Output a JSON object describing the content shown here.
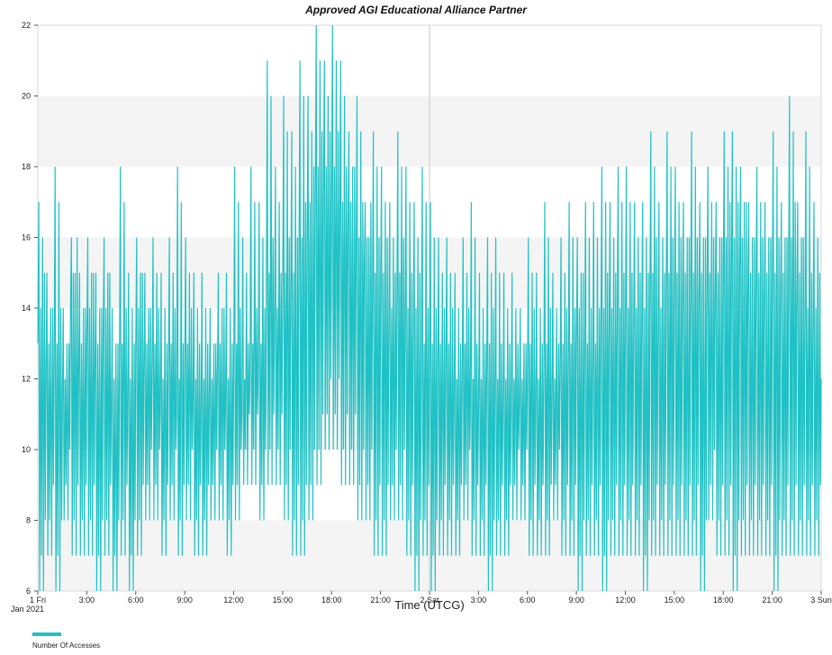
{
  "chart_data": {
    "type": "line",
    "title": "Approved AGI Educational Alliance Partner",
    "xlabel": "Time (UTCG)",
    "ylabel": "",
    "ylim": [
      6,
      22
    ],
    "yticks": [
      6,
      8,
      10,
      12,
      14,
      16,
      18,
      20,
      22
    ],
    "x_unit": "hours since Jan 1 2021 00:00 UTCG",
    "xlim": [
      0,
      48
    ],
    "xtick_labels": [
      "1 Fri",
      "3:00",
      "6:00",
      "9:00",
      "12:00",
      "15:00",
      "18:00",
      "21:00",
      "2 Sat",
      "3:00",
      "6:00",
      "9:00",
      "12:00",
      "15:00",
      "18:00",
      "21:00",
      "3 Sun"
    ],
    "xtick_sublabel": "Jan 2021",
    "legend_position": "bottom-left",
    "grid": "alternating horizontal bands",
    "series": [
      {
        "name": "Number Of Accesses",
        "color": "#20c1c4",
        "x": [
          0,
          0.5,
          1,
          1.5,
          2,
          2.5,
          3,
          3.5,
          4,
          4.5,
          5,
          5.5,
          6,
          6.5,
          7,
          7.5,
          8,
          8.5,
          9,
          9.5,
          10,
          10.5,
          11,
          11.5,
          12,
          12.5,
          13,
          13.5,
          14,
          14.5,
          15,
          15.5,
          16,
          16.5,
          17,
          17.5,
          18,
          18.5,
          19,
          19.5,
          20,
          20.5,
          21,
          21.5,
          22,
          22.5,
          23,
          23.5,
          24,
          24.5,
          25,
          25.5,
          26,
          26.5,
          27,
          27.5,
          28,
          28.5,
          29,
          29.5,
          30,
          30.5,
          31,
          31.5,
          32,
          32.5,
          33,
          33.5,
          34,
          34.5,
          35,
          35.5,
          36,
          36.5,
          37,
          37.5,
          38,
          38.5,
          39,
          39.5,
          40,
          40.5,
          41,
          41.5,
          42,
          42.5,
          43,
          43.5,
          44,
          44.5,
          45,
          45.5,
          46,
          46.5,
          47,
          47.5,
          48
        ],
        "hi": [
          17,
          15,
          18,
          14,
          16,
          15,
          16,
          15,
          16,
          14,
          18,
          15,
          16,
          15,
          16,
          15,
          16,
          18,
          16,
          15,
          15,
          14,
          15,
          15,
          18,
          16,
          18,
          17,
          21,
          18,
          20,
          19,
          21,
          20,
          22,
          21,
          22,
          21,
          19,
          20,
          17,
          19,
          18,
          17,
          19,
          18,
          17,
          18,
          17,
          16,
          16,
          15,
          16,
          17,
          15,
          16,
          16,
          15,
          15,
          14,
          16,
          15,
          17,
          15,
          16,
          17,
          16,
          17,
          17,
          18,
          17,
          18,
          18,
          17,
          17,
          19,
          17,
          19,
          18,
          17,
          19,
          17,
          18,
          17,
          19,
          19,
          18,
          17,
          18,
          17,
          19,
          17,
          20,
          17,
          19,
          17,
          18
        ],
        "mid": [
          13,
          12,
          12,
          11,
          14,
          12,
          13,
          12,
          13,
          11,
          12,
          11,
          13,
          12,
          12,
          11,
          12,
          11,
          12,
          11,
          11,
          11,
          12,
          11,
          12,
          11,
          12,
          12,
          14,
          13,
          14,
          14,
          15,
          16,
          17,
          17,
          17,
          16,
          16,
          15,
          15,
          14,
          14,
          13,
          14,
          13,
          13,
          12,
          12,
          12,
          12,
          11,
          12,
          11,
          11,
          12,
          11,
          11,
          11,
          11,
          12,
          11,
          12,
          11,
          12,
          12,
          13,
          12,
          12,
          13,
          13,
          13,
          13,
          13,
          13,
          14,
          13,
          14,
          14,
          14,
          14,
          14,
          14,
          14,
          15,
          15,
          15,
          14,
          14,
          14,
          14,
          14,
          15,
          14,
          13,
          13,
          12
        ],
        "lo": [
          6,
          7,
          6,
          8,
          7,
          7,
          7,
          6,
          7,
          6,
          7,
          6,
          7,
          8,
          8,
          7,
          8,
          7,
          8,
          7,
          7,
          8,
          8,
          7,
          8,
          9,
          9,
          8,
          9,
          9,
          8,
          7,
          7,
          8,
          9,
          10,
          10,
          9,
          9,
          8,
          8,
          7,
          7,
          8,
          8,
          7,
          6,
          7,
          6,
          7,
          7,
          7,
          8,
          7,
          7,
          6,
          7,
          7,
          8,
          8,
          7,
          7,
          7,
          8,
          7,
          7,
          6,
          7,
          7,
          6,
          7,
          7,
          7,
          7,
          6,
          7,
          7,
          7,
          7,
          7,
          7,
          6,
          8,
          7,
          7,
          6,
          7,
          7,
          7,
          7,
          6,
          7,
          7,
          7,
          7,
          7,
          7
        ]
      }
    ]
  }
}
